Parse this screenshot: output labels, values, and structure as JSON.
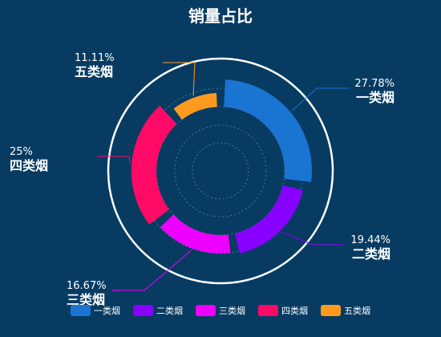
{
  "chart_data": {
    "type": "pie",
    "title": "销量占比",
    "categories": [
      "一类烟",
      "二类烟",
      "三类烟",
      "四类烟",
      "五类烟"
    ],
    "percent_labels": [
      "27.78%",
      "19.44%",
      "16.67%",
      "25%",
      "11.11%"
    ],
    "values": [
      27.78,
      19.44,
      16.67,
      25,
      11.11
    ],
    "colors": [
      "#1a74d1",
      "#8800ff",
      "#ee00ff",
      "#ff0a66",
      "#ff9a1f"
    ],
    "legend_position": "bottom",
    "style": "rose (variable-radius rings) inside outer circle"
  }
}
